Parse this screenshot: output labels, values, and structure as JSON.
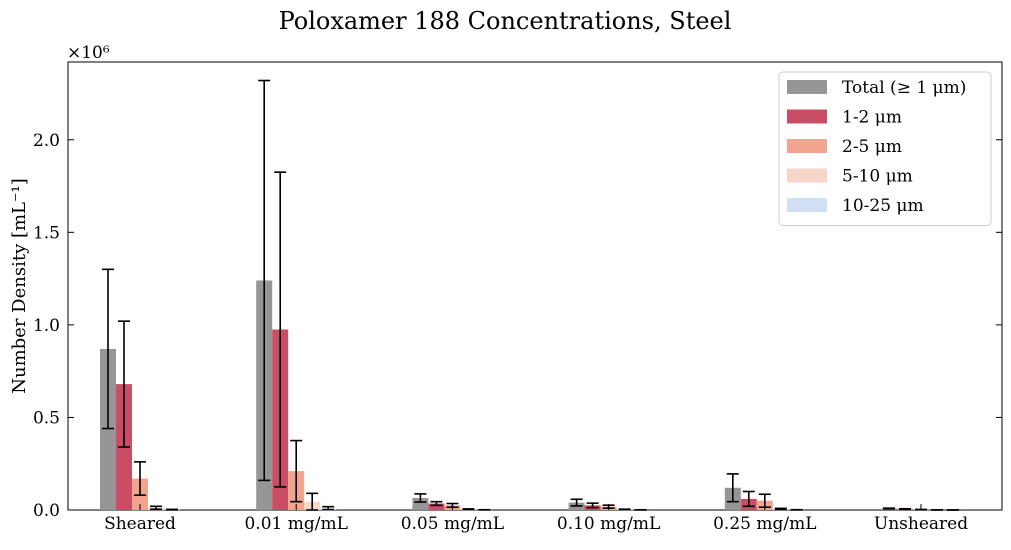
{
  "chart_data": {
    "type": "bar",
    "title": "Poloxamer 188 Concentrations, Steel",
    "xlabel": "",
    "ylabel": "Number Density [mL⁻¹]",
    "y_scale_label": "×10⁶",
    "ylim": [
      0,
      2420000
    ],
    "yticks": [
      0,
      500000,
      1000000,
      1500000,
      2000000
    ],
    "ytick_labels": [
      "0.0",
      "0.5",
      "1.0",
      "1.5",
      "2.0"
    ],
    "grid": false,
    "legend_position": "top-right",
    "categories": [
      "Sheared",
      "0.01 mg/mL",
      "0.05 mg/mL",
      "0.10 mg/mL",
      "0.25 mg/mL",
      "Unsheared"
    ],
    "series": [
      {
        "name": "Total (≥ 1 μm)",
        "color": "#969696",
        "values": [
          870000,
          1240000,
          65000,
          40000,
          120000,
          8000
        ],
        "errors": [
          430000,
          1080000,
          22000,
          18000,
          75000,
          2000
        ]
      },
      {
        "name": "1-2 μm",
        "color": "#c94d65",
        "values": [
          680000,
          975000,
          35000,
          25000,
          60000,
          5000
        ],
        "errors": [
          340000,
          850000,
          10000,
          12000,
          40000,
          1500
        ]
      },
      {
        "name": "2-5 μm",
        "color": "#f1a58f",
        "values": [
          170000,
          210000,
          25000,
          18000,
          50000,
          2000
        ],
        "errors": [
          90000,
          165000,
          10000,
          8000,
          35000,
          1000
        ]
      },
      {
        "name": "5-10 μm",
        "color": "#f5d6c9",
        "values": [
          12000,
          45000,
          4000,
          3000,
          6000,
          500
        ],
        "errors": [
          8000,
          45000,
          2000,
          1500,
          3000,
          300
        ]
      },
      {
        "name": "10-25 μm",
        "color": "#d0dff4",
        "values": [
          2000,
          10000,
          1000,
          800,
          1000,
          200
        ],
        "errors": [
          1500,
          8000,
          500,
          400,
          600,
          100
        ]
      }
    ]
  }
}
